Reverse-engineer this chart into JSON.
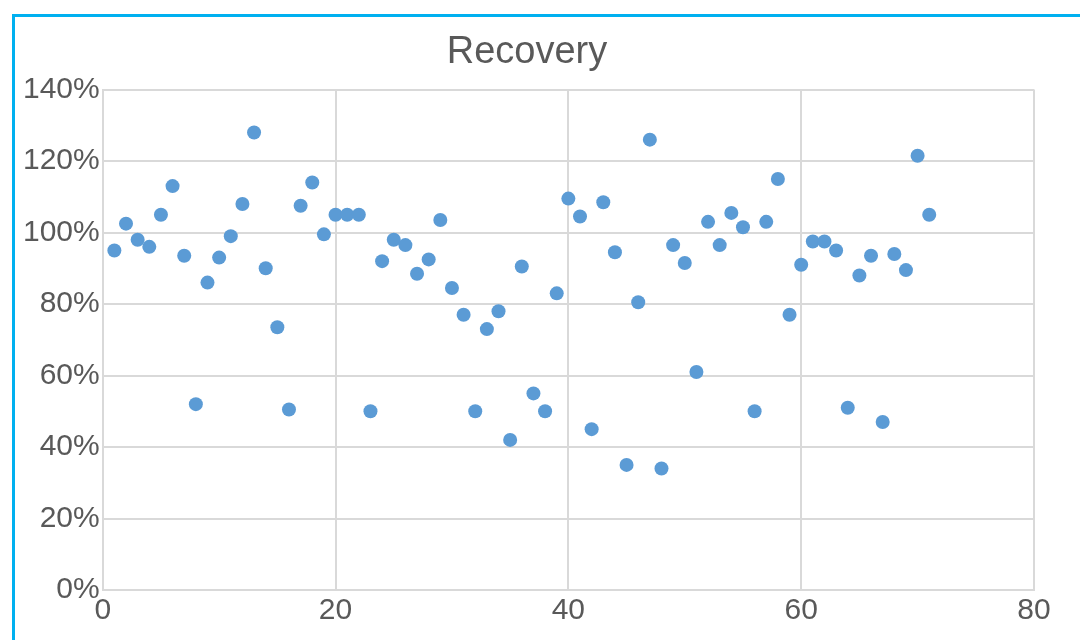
{
  "chart_data": {
    "type": "scatter",
    "title": "Recovery",
    "x": [
      1,
      2,
      3,
      4,
      5,
      6,
      7,
      8,
      9,
      10,
      11,
      12,
      13,
      14,
      15,
      16,
      17,
      18,
      19,
      20,
      21,
      22,
      23,
      24,
      25,
      26,
      27,
      28,
      29,
      30,
      31,
      32,
      33,
      34,
      35,
      36,
      37,
      38,
      39,
      40,
      41,
      42,
      43,
      44,
      45,
      46,
      47,
      48,
      49,
      50,
      51,
      52,
      53,
      54,
      55,
      56,
      57,
      58,
      59,
      60,
      61,
      62,
      63,
      64,
      65,
      66,
      67,
      68,
      69,
      70,
      71
    ],
    "series": [
      {
        "color": "#5b9bd5",
        "values": [
          95,
          102.5,
          98,
          96,
          105,
          113,
          93.5,
          52,
          86,
          93,
          99,
          108,
          128,
          90,
          73.5,
          50.5,
          107.5,
          114,
          99.5,
          105,
          105,
          105,
          50,
          92,
          98,
          96.5,
          88.5,
          92.5,
          103.5,
          84.5,
          77,
          50,
          73,
          78,
          42,
          90.5,
          55,
          50,
          83,
          109.5,
          104.5,
          45,
          108.5,
          94.5,
          35,
          80.5,
          126,
          34,
          96.5,
          91.5,
          61,
          103,
          96.5,
          105.5,
          101.5,
          50,
          103,
          115,
          77,
          91,
          97.5,
          97.5,
          95,
          51,
          88,
          93.5,
          47,
          94,
          89.5,
          121.5,
          105
        ]
      }
    ],
    "xlim": [
      0,
      80
    ],
    "xticks": [
      0,
      20,
      40,
      60,
      80
    ],
    "ylim": [
      0,
      140
    ],
    "yticks": [
      {
        "value": 0,
        "label": "0%"
      },
      {
        "value": 20,
        "label": "20%"
      },
      {
        "value": 40,
        "label": "40%"
      },
      {
        "value": 60,
        "label": "60%"
      },
      {
        "value": 80,
        "label": "80%"
      },
      {
        "value": 100,
        "label": "100%"
      },
      {
        "value": 120,
        "label": "120%"
      },
      {
        "value": 140,
        "label": "140%"
      }
    ],
    "grid": true,
    "marker": "circle",
    "legend": false
  }
}
